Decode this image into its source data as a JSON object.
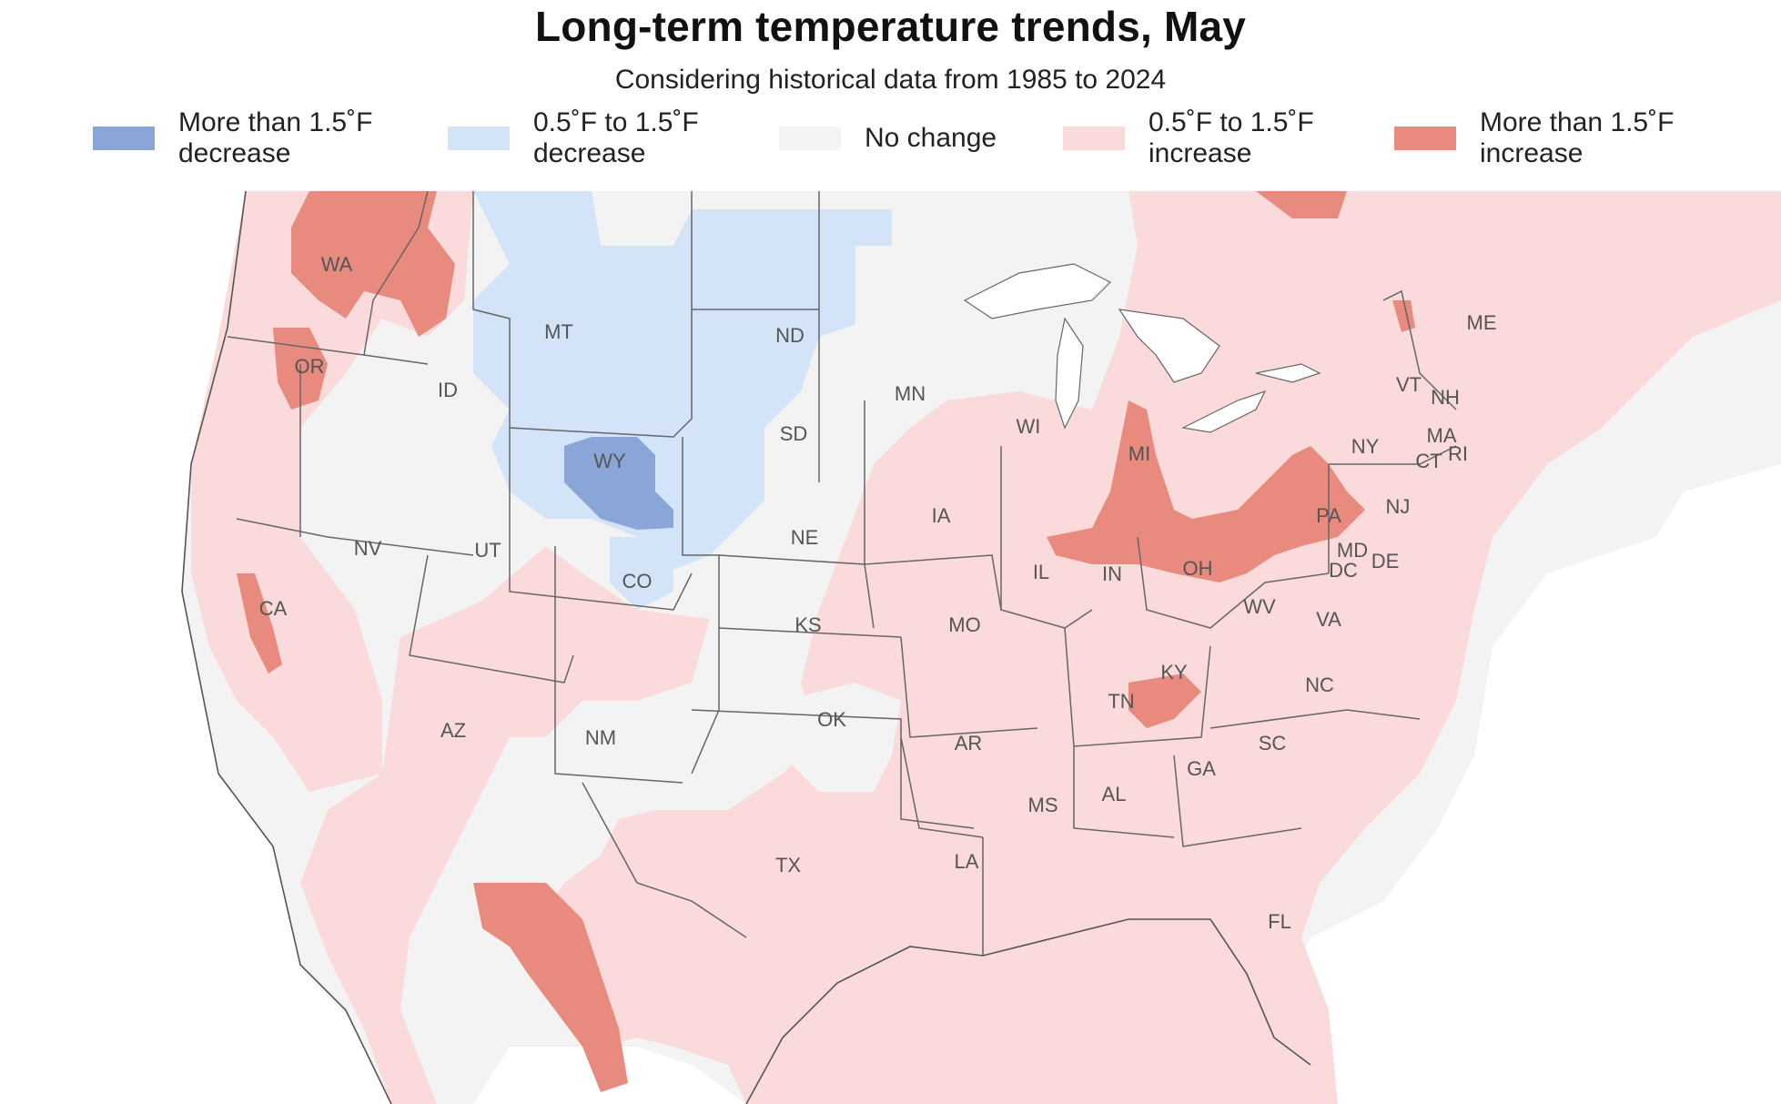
{
  "title": "Long-term temperature trends, May",
  "subtitle": "Considering historical data from 1985 to 2024",
  "colors": {
    "strong_decrease": "#8aa6d8",
    "decrease": "#d3e4f8",
    "no_change": "#f3f3f3",
    "increase": "#fadada",
    "strong_increase": "#e88a7e",
    "border": "#666666",
    "water": "#ffffff"
  },
  "legend": [
    {
      "key": "strong_decrease",
      "line1": "More than 1.5˚F",
      "line2": "decrease"
    },
    {
      "key": "decrease",
      "line1": "0.5˚F to 1.5˚F",
      "line2": "decrease"
    },
    {
      "key": "no_change",
      "line1": "No change",
      "line2": ""
    },
    {
      "key": "increase",
      "line1": "0.5˚F to 1.5˚F",
      "line2": "increase"
    },
    {
      "key": "strong_increase",
      "line1": "More than 1.5˚F",
      "line2": "increase"
    }
  ],
  "states": [
    "WA",
    "OR",
    "CA",
    "ID",
    "NV",
    "MT",
    "WY",
    "UT",
    "AZ",
    "CO",
    "NM",
    "ND",
    "SD",
    "NE",
    "KS",
    "OK",
    "TX",
    "MN",
    "IA",
    "MO",
    "AR",
    "LA",
    "WI",
    "IL",
    "MI",
    "IN",
    "OH",
    "KY",
    "TN",
    "MS",
    "AL",
    "GA",
    "FL",
    "SC",
    "NC",
    "VA",
    "WV",
    "PA",
    "NY",
    "VT",
    "NH",
    "ME",
    "MA",
    "CT",
    "RI",
    "NJ",
    "DE",
    "MD",
    "DC"
  ]
}
